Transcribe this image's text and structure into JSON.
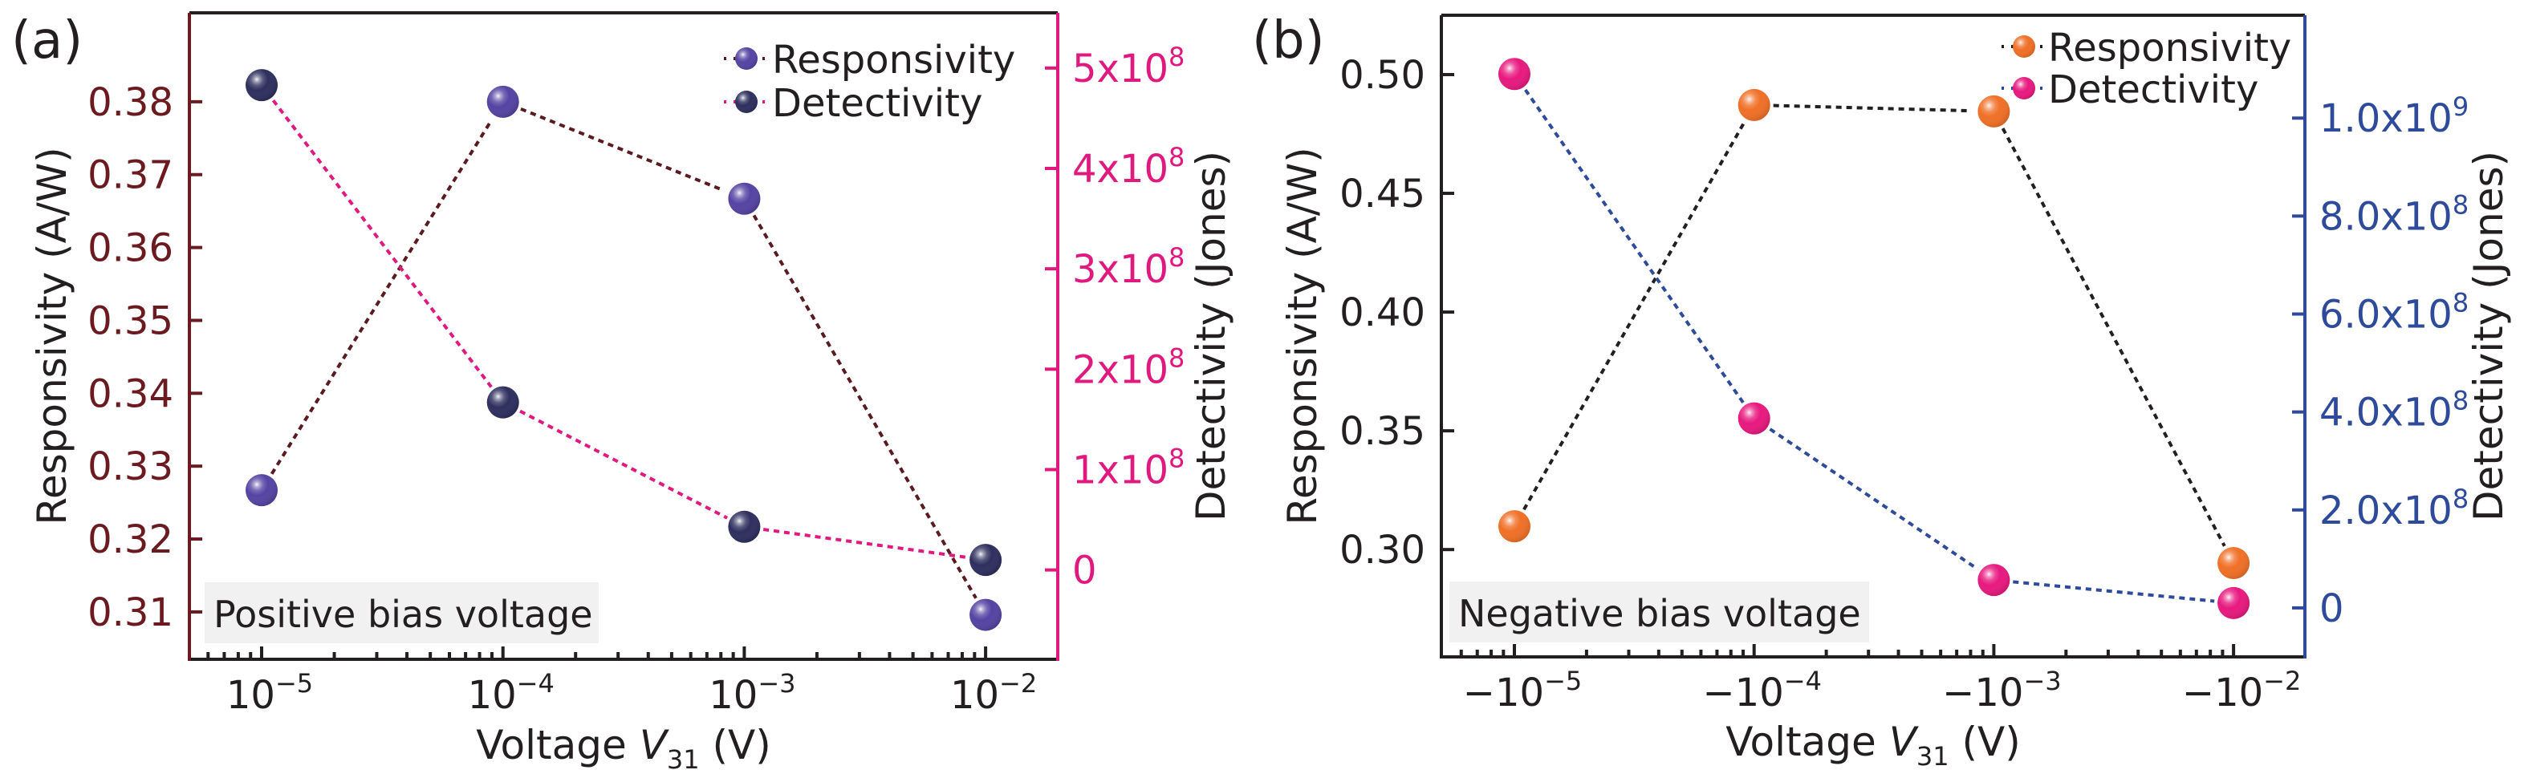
{
  "chart_data": [
    {
      "panel_label": "(a)",
      "type": "scatter",
      "xscale": "log",
      "x": [
        1e-05,
        0.0001,
        0.001,
        0.01
      ],
      "x_tick_labels": [
        {
          "base": "10",
          "exp": "−5"
        },
        {
          "base": "10",
          "exp": "−4"
        },
        {
          "base": "10",
          "exp": "−3"
        },
        {
          "base": "10",
          "exp": "−2"
        }
      ],
      "xlabel": {
        "prefix": "Voltage ",
        "var": "V",
        "sub": "31",
        "suffix": " (V)"
      },
      "ylabel_left": "Responsivity (A/W)",
      "ylabel_right": "Detectivity (Jones)",
      "ylim_left": [
        0.3035,
        0.3922
      ],
      "yticks_left": [
        "0.31",
        "0.32",
        "0.33",
        "0.34",
        "0.35",
        "0.36",
        "0.37",
        "0.38"
      ],
      "yticks_left_values": [
        0.31,
        0.32,
        0.33,
        0.34,
        0.35,
        0.36,
        0.37,
        0.38
      ],
      "ylim_right": [
        -89000000.0,
        555000000.0
      ],
      "yticks_right": [
        {
          "base": "0",
          "exp": ""
        },
        {
          "base": "1x10",
          "exp": "8"
        },
        {
          "base": "2x10",
          "exp": "8"
        },
        {
          "base": "3x10",
          "exp": "8"
        },
        {
          "base": "4x10",
          "exp": "8"
        },
        {
          "base": "5x10",
          "exp": "8"
        }
      ],
      "yticks_right_values": [
        0,
        100000000.0,
        200000000.0,
        300000000.0,
        400000000.0,
        500000000.0
      ],
      "left_axis_color": "#6b1a1f",
      "right_axis_color": "#e0197f",
      "annotation": "Positive bias voltage",
      "legend_position": "top-right",
      "series": [
        {
          "name": "Responsivity",
          "axis": "left",
          "values": [
            0.3267,
            0.38,
            0.3667,
            0.3096
          ],
          "color": "#5544a3",
          "line_color": "#5a1a22"
        },
        {
          "name": "Detectivity",
          "axis": "right",
          "values": [
            483000000.0,
            167000000.0,
            43000000.0,
            10000000.0
          ],
          "color": "#2e2f5e",
          "line_color": "#e0197f"
        }
      ]
    },
    {
      "panel_label": "(b)",
      "type": "scatter",
      "xscale": "log",
      "x": [
        -1e-05,
        -0.0001,
        -0.001,
        -0.01
      ],
      "x_tick_labels": [
        {
          "base": "−10",
          "exp": "−5"
        },
        {
          "base": "−10",
          "exp": "−4"
        },
        {
          "base": "−10",
          "exp": "−3"
        },
        {
          "base": "−10",
          "exp": "−2"
        }
      ],
      "xlabel": {
        "prefix": "Voltage ",
        "var": "V",
        "sub": "31",
        "suffix": " (V)"
      },
      "ylabel_left": "Responsivity (A/W)",
      "ylabel_right": "Detectivity (Jones)",
      "ylim_left": [
        0.2548,
        0.525
      ],
      "yticks_left": [
        "0.30",
        "0.35",
        "0.40",
        "0.45",
        "0.50"
      ],
      "yticks_left_values": [
        0.3,
        0.35,
        0.4,
        0.45,
        0.5
      ],
      "ylim_right": [
        -100000000.0,
        1210000000.0
      ],
      "yticks_right": [
        {
          "base": "0",
          "exp": ""
        },
        {
          "base": "2.0x10",
          "exp": "8"
        },
        {
          "base": "4.0x10",
          "exp": "8"
        },
        {
          "base": "6.0x10",
          "exp": "8"
        },
        {
          "base": "8.0x10",
          "exp": "8"
        },
        {
          "base": "1.0x10",
          "exp": "9"
        }
      ],
      "yticks_right_values": [
        0,
        200000000.0,
        400000000.0,
        600000000.0,
        800000000.0,
        1000000000.0
      ],
      "left_axis_color": "#231f20",
      "right_axis_color": "#2e4a9a",
      "annotation": "Negative bias voltage",
      "legend_position": "top-right",
      "series": [
        {
          "name": "Responsivity",
          "axis": "left",
          "values": [
            0.3098,
            0.4872,
            0.4845,
            0.2943
          ],
          "color": "#f07027",
          "line_color": "#231f20"
        },
        {
          "name": "Detectivity",
          "axis": "right",
          "values": [
            1090000000.0,
            387000000.0,
            57000000.0,
            10000000.0
          ],
          "color": "#e8197f",
          "line_color": "#2e4a9a"
        }
      ]
    }
  ]
}
